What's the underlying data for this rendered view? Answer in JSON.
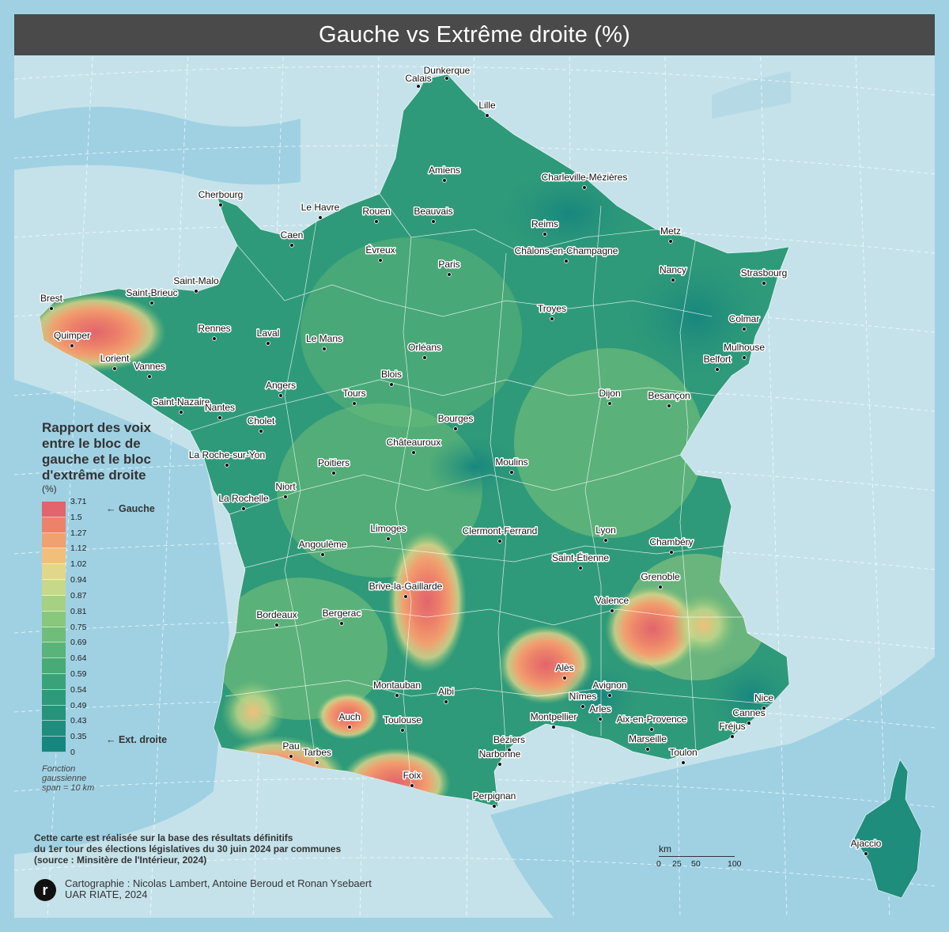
{
  "title": "Gauche vs Extrême droite (%)",
  "legend": {
    "title_lines": [
      "Rapport des voix",
      "entre le bloc de",
      "gauche et le bloc",
      "d'extrême droite"
    ],
    "unit": "(%)",
    "breaks": [
      "3.71",
      "1.5",
      "1.27",
      "1.12",
      "1.02",
      "0.94",
      "0.87",
      "0.81",
      "0.75",
      "0.69",
      "0.64",
      "0.59",
      "0.54",
      "0.49",
      "0.43",
      "0.35",
      "0"
    ],
    "colors": [
      "#e2646c",
      "#ec826a",
      "#f1a06f",
      "#f2bf7b",
      "#e2d68b",
      "#c6d98a",
      "#a6d082",
      "#88c77c",
      "#6fbd79",
      "#5ab378",
      "#48aa77",
      "#3aa278",
      "#2f9a79",
      "#27937b",
      "#1f8d7c",
      "#17867e"
    ],
    "label_high": "← Gauche",
    "label_low": "← Ext. droite",
    "method_lines": [
      "Fonction",
      "gaussienne",
      "span = 10 km"
    ]
  },
  "source_lines": [
    "Cette carte est réalisée sur la base des résultats définitifs",
    "du 1er tour des élections législatives du 30 juin 2024 par communes",
    "(source : Minsitère de l'Intérieur, 2024)"
  ],
  "credit_lines": [
    "Cartographie : Nicolas Lambert, Antoine Beroud et Ronan Ysebaert",
    "UAR RIATE, 2024"
  ],
  "logo_letter": "r",
  "scalebar": {
    "unit": "km",
    "ticks": [
      "0",
      "25",
      "50",
      "100"
    ]
  },
  "colors": {
    "sea": "#9fd1e3",
    "land_outside": "#c5e2ea",
    "title_bg": "#4a4a4a",
    "low_fill": "#17867e",
    "mid_fill": "#55b078",
    "high_fill": "#e2646c"
  },
  "cities": [
    {
      "name": "Dunkerque",
      "level": "low"
    },
    {
      "name": "Calais",
      "level": "low"
    },
    {
      "name": "Lille",
      "level": "high"
    },
    {
      "name": "Amiens",
      "level": "mid"
    },
    {
      "name": "Charleville-Mézières",
      "level": "low"
    },
    {
      "name": "Cherbourg",
      "level": "mid"
    },
    {
      "name": "Le Havre",
      "level": "mid"
    },
    {
      "name": "Rouen",
      "level": "high"
    },
    {
      "name": "Beauvais",
      "level": "low"
    },
    {
      "name": "Reims",
      "level": "high"
    },
    {
      "name": "Metz",
      "level": "mid"
    },
    {
      "name": "Caen",
      "level": "high"
    },
    {
      "name": "Évreux",
      "level": "low"
    },
    {
      "name": "Paris",
      "level": "high"
    },
    {
      "name": "Châlons-en-Champagne",
      "level": "low"
    },
    {
      "name": "Nancy",
      "level": "high"
    },
    {
      "name": "Strasbourg",
      "level": "high"
    },
    {
      "name": "Saint-Malo",
      "level": "mid"
    },
    {
      "name": "Brest",
      "level": "high"
    },
    {
      "name": "Saint-Brieuc",
      "level": "high"
    },
    {
      "name": "Troyes",
      "level": "low"
    },
    {
      "name": "Colmar",
      "level": "low"
    },
    {
      "name": "Rennes",
      "level": "high"
    },
    {
      "name": "Laval",
      "level": "high"
    },
    {
      "name": "Le Mans",
      "level": "high"
    },
    {
      "name": "Quimper",
      "level": "high"
    },
    {
      "name": "Orléans",
      "level": "high"
    },
    {
      "name": "Mulhouse",
      "level": "low"
    },
    {
      "name": "Lorient",
      "level": "high"
    },
    {
      "name": "Belfort",
      "level": "mid"
    },
    {
      "name": "Vannes",
      "level": "high"
    },
    {
      "name": "Blois",
      "level": "mid"
    },
    {
      "name": "Angers",
      "level": "high"
    },
    {
      "name": "Tours",
      "level": "high"
    },
    {
      "name": "Dijon",
      "level": "high"
    },
    {
      "name": "Besançon",
      "level": "high"
    },
    {
      "name": "Saint-Nazaire",
      "level": "high"
    },
    {
      "name": "Nantes",
      "level": "high"
    },
    {
      "name": "Bourges",
      "level": "mid"
    },
    {
      "name": "Cholet",
      "level": "mid"
    },
    {
      "name": "Châteauroux",
      "level": "low"
    },
    {
      "name": "La Roche-sur-Yon",
      "level": "high"
    },
    {
      "name": "Poitiers",
      "level": "high"
    },
    {
      "name": "Moulins",
      "level": "mid"
    },
    {
      "name": "Niort",
      "level": "high"
    },
    {
      "name": "La Rochelle",
      "level": "high"
    },
    {
      "name": "Limoges",
      "level": "high"
    },
    {
      "name": "Clermont-Ferrand",
      "level": "high"
    },
    {
      "name": "Lyon",
      "level": "high"
    },
    {
      "name": "Angoulême",
      "level": "mid"
    },
    {
      "name": "Chambéry",
      "level": "mid"
    },
    {
      "name": "Saint-Étienne",
      "level": "high"
    },
    {
      "name": "Grenoble",
      "level": "high"
    },
    {
      "name": "Brive-la-Gaillarde",
      "level": "mid"
    },
    {
      "name": "Valence",
      "level": "mid"
    },
    {
      "name": "Bordeaux",
      "level": "high"
    },
    {
      "name": "Bergerac",
      "level": "low"
    },
    {
      "name": "Alès",
      "level": "high"
    },
    {
      "name": "Montauban",
      "level": "low"
    },
    {
      "name": "Avignon",
      "level": "low"
    },
    {
      "name": "Albi",
      "level": "mid"
    },
    {
      "name": "Nîmes",
      "level": "low"
    },
    {
      "name": "Nice",
      "level": "low"
    },
    {
      "name": "Arles",
      "level": "mid"
    },
    {
      "name": "Cannes",
      "level": "low"
    },
    {
      "name": "Auch",
      "level": "high"
    },
    {
      "name": "Toulouse",
      "level": "high"
    },
    {
      "name": "Montpellier",
      "level": "high"
    },
    {
      "name": "Aix-en-Provence",
      "level": "low"
    },
    {
      "name": "Fréjus",
      "level": "low"
    },
    {
      "name": "Marseille",
      "level": "high"
    },
    {
      "name": "Béziers",
      "level": "low"
    },
    {
      "name": "Pau",
      "level": "high"
    },
    {
      "name": "Tarbes",
      "level": "high"
    },
    {
      "name": "Narbonne",
      "level": "low"
    },
    {
      "name": "Toulon",
      "level": "low"
    },
    {
      "name": "Foix",
      "level": "high"
    },
    {
      "name": "Perpignan",
      "level": "low"
    },
    {
      "name": "Ajaccio",
      "level": "low"
    }
  ]
}
